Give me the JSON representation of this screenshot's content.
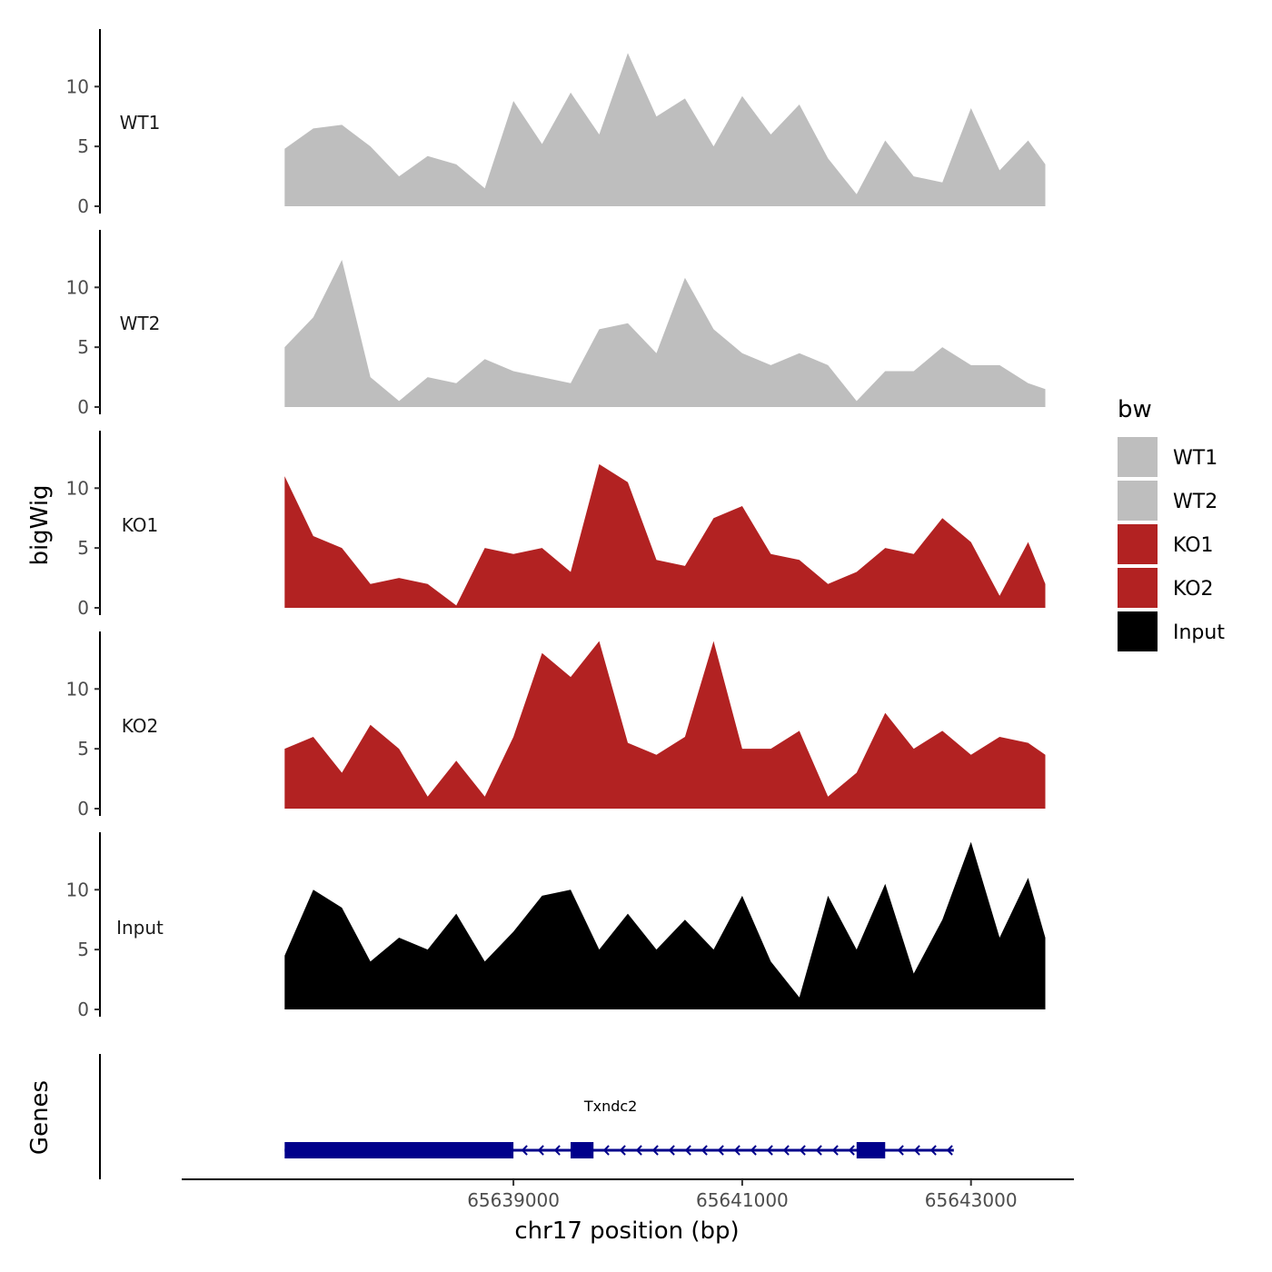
{
  "chart_data": {
    "type": "area",
    "ylabel": "bigWig",
    "xlabel": "chr17 position (bp)",
    "xlim": [
      65636100,
      65643900
    ],
    "ylim": [
      0,
      14.5
    ],
    "yticks": [
      0,
      5,
      10
    ],
    "xticks": [
      65639000,
      65641000,
      65643000
    ],
    "x": [
      65637000,
      65637250,
      65637500,
      65637750,
      65638000,
      65638250,
      65638500,
      65638750,
      65639000,
      65639250,
      65639500,
      65639750,
      65640000,
      65640250,
      65640500,
      65640750,
      65641000,
      65641250,
      65641500,
      65641750,
      65642000,
      65642250,
      65642500,
      65642750,
      65643000,
      65643250,
      65643500,
      65643650
    ],
    "series": [
      {
        "name": "WT1",
        "color": "#bebebe",
        "values": [
          4.8,
          6.5,
          6.8,
          5.0,
          2.5,
          4.2,
          3.5,
          1.5,
          8.8,
          5.2,
          9.5,
          6.0,
          12.8,
          7.5,
          9.0,
          5.0,
          9.2,
          6.0,
          8.5,
          4.0,
          1.0,
          5.5,
          2.5,
          2.0,
          8.2,
          3.0,
          5.5,
          3.5
        ]
      },
      {
        "name": "WT2",
        "color": "#bebebe",
        "values": [
          5.0,
          7.5,
          12.3,
          2.5,
          0.5,
          2.5,
          2.0,
          4.0,
          3.0,
          2.5,
          2.0,
          6.5,
          7.0,
          4.5,
          10.8,
          6.5,
          4.5,
          3.5,
          4.5,
          3.5,
          0.5,
          3.0,
          3.0,
          5.0,
          3.5,
          3.5,
          2.0,
          1.5
        ]
      },
      {
        "name": "KO1",
        "color": "#b22222",
        "values": [
          11.0,
          6.0,
          5.0,
          2.0,
          2.5,
          2.0,
          0.2,
          5.0,
          4.5,
          5.0,
          3.0,
          12.0,
          10.5,
          4.0,
          3.5,
          7.5,
          8.5,
          4.5,
          4.0,
          2.0,
          3.0,
          5.0,
          4.5,
          7.5,
          5.5,
          1.0,
          5.5,
          2.0
        ]
      },
      {
        "name": "KO2",
        "color": "#b22222",
        "values": [
          5.0,
          6.0,
          3.0,
          7.0,
          5.0,
          1.0,
          4.0,
          1.0,
          6.0,
          13.0,
          11.0,
          14.0,
          5.5,
          4.5,
          6.0,
          14.0,
          5.0,
          5.0,
          6.5,
          1.0,
          3.0,
          8.0,
          5.0,
          6.5,
          4.5,
          6.0,
          5.5,
          4.5
        ]
      },
      {
        "name": "Input",
        "color": "#000000",
        "values": [
          4.5,
          10.0,
          8.5,
          4.0,
          6.0,
          5.0,
          8.0,
          4.0,
          6.5,
          9.5,
          10.0,
          5.0,
          8.0,
          5.0,
          7.5,
          5.0,
          9.5,
          4.0,
          1.0,
          9.5,
          5.0,
          10.5,
          3.0,
          7.5,
          14.0,
          6.0,
          11.0,
          6.0
        ]
      }
    ],
    "legend": {
      "title": "bw",
      "position": "right",
      "entries": [
        {
          "label": "WT1",
          "color": "#bebebe"
        },
        {
          "label": "WT2",
          "color": "#bebebe"
        },
        {
          "label": "KO1",
          "color": "#b22222"
        },
        {
          "label": "KO2",
          "color": "#b22222"
        },
        {
          "label": "Input",
          "color": "#000000"
        }
      ]
    },
    "genes": {
      "track_title": "Genes",
      "name": "Txndc2",
      "color": "#00008b",
      "strand": "-",
      "start": 65637000,
      "end": 65642850,
      "exons": [
        [
          65637000,
          65639000
        ],
        [
          65639500,
          65639700
        ],
        [
          65642000,
          65642250
        ]
      ]
    }
  }
}
